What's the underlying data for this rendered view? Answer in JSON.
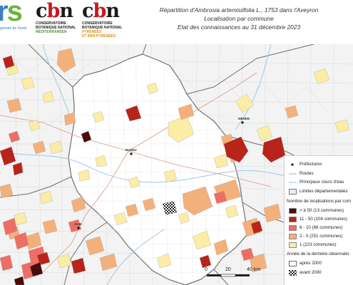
{
  "header": {
    "logo_ars": {
      "mark": "rs",
      "tagline": "gionale de Santé"
    },
    "logo_cbn_med": {
      "word": "cbn",
      "line1": "CONSERVATOIRE",
      "line2": "BOTANIQUE NATIONAL",
      "line3": "MÉDITERRANÉEN"
    },
    "logo_cbn_pyr": {
      "word": "cbn",
      "line1": "CONSERVATOIRE",
      "line2": "BOTANIQUE NATIONAL",
      "line3": "PYRÉNÉES",
      "line4": "ET MIDI-PYRÉNÉES"
    },
    "title_line1": "Répartition d'Ambrosia artemisiifolia L., 1753 dans l'Aveyron",
    "title_line2": "Localisation par commune",
    "title_line3": "Etat des connaissances au 31 décembre 2023"
  },
  "map": {
    "town_labels": [
      "MENDE",
      "RODEZ",
      "ALBI"
    ],
    "scale_labels": [
      "0",
      "20",
      "40 km"
    ]
  },
  "legend": {
    "prefectures": "Préfectures",
    "roads": "Routes",
    "rivers": "Principaux cours d'eau",
    "departments": "Limites départementales",
    "counts_title": "Nombre de localisations par com",
    "classes": [
      {
        "label": "> à 50 (13 communes)",
        "color": "#4a0b0b"
      },
      {
        "label": "11 - 50 (104 communes)",
        "color": "#b8231a"
      },
      {
        "label": "6 - 10 (68 communes)",
        "color": "#ef6e64"
      },
      {
        "label": "2 - 5 (251 communes)",
        "color": "#f4b07a"
      },
      {
        "label": "1 (223 communes)",
        "color": "#fbeca6"
      }
    ],
    "year_title": "Année de la dernière observatio",
    "after": "après 2000",
    "before": "avant 2000"
  }
}
